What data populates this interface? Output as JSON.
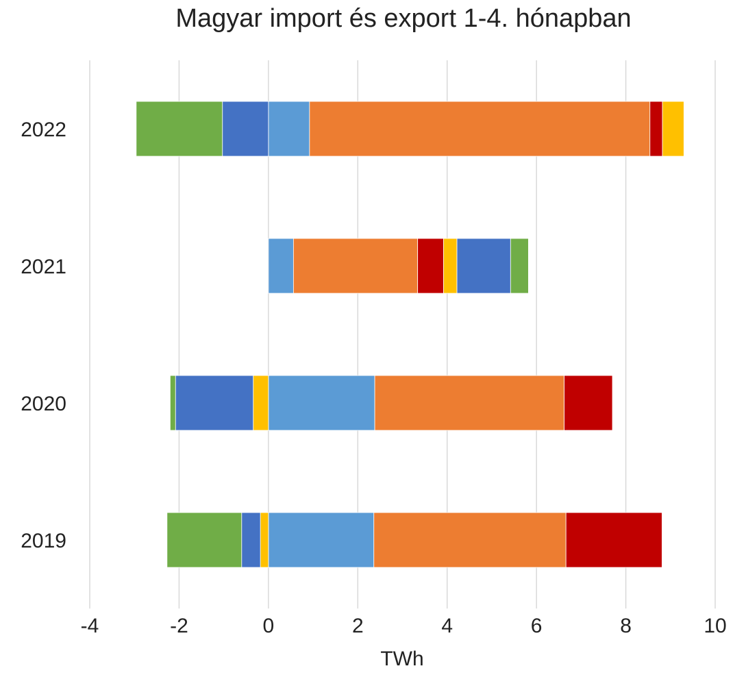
{
  "chart_data": {
    "type": "bar",
    "orientation": "horizontal",
    "stacked": true,
    "title": "Magyar import és export 1-4. hónapban",
    "xlabel": "TWh",
    "ylabel": "",
    "xlim": [
      -4,
      10
    ],
    "xticks": [
      "-4",
      "-2",
      "0",
      "2",
      "4",
      "6",
      "8",
      "10"
    ],
    "categories": [
      "2022",
      "2021",
      "2020",
      "2019"
    ],
    "grid": true,
    "legend": "none",
    "series": [
      {
        "color": "#70AD47",
        "values": [
          -1.93,
          0.4,
          -0.12,
          -1.67
        ]
      },
      {
        "color": "#4472C4",
        "values": [
          -1.03,
          1.2,
          -1.74,
          -0.42
        ]
      },
      {
        "color": "#FFC000",
        "values": [
          0.48,
          0.3,
          -0.34,
          -0.18
        ]
      },
      {
        "color": "#C00000",
        "values": [
          0.28,
          0.58,
          1.08,
          2.15
        ]
      },
      {
        "color": "#ED7D31",
        "values": [
          7.62,
          2.78,
          4.24,
          4.3
        ]
      },
      {
        "color": "#5B9BD5",
        "values": [
          0.92,
          0.56,
          2.38,
          2.36
        ]
      }
    ],
    "stack_order": [
      [
        5,
        4,
        3,
        2,
        1,
        0
      ],
      [
        5,
        4,
        3,
        2,
        1,
        0
      ],
      [
        5,
        4,
        3,
        2,
        1,
        0
      ],
      [
        5,
        4,
        3,
        2,
        1,
        0
      ]
    ]
  }
}
